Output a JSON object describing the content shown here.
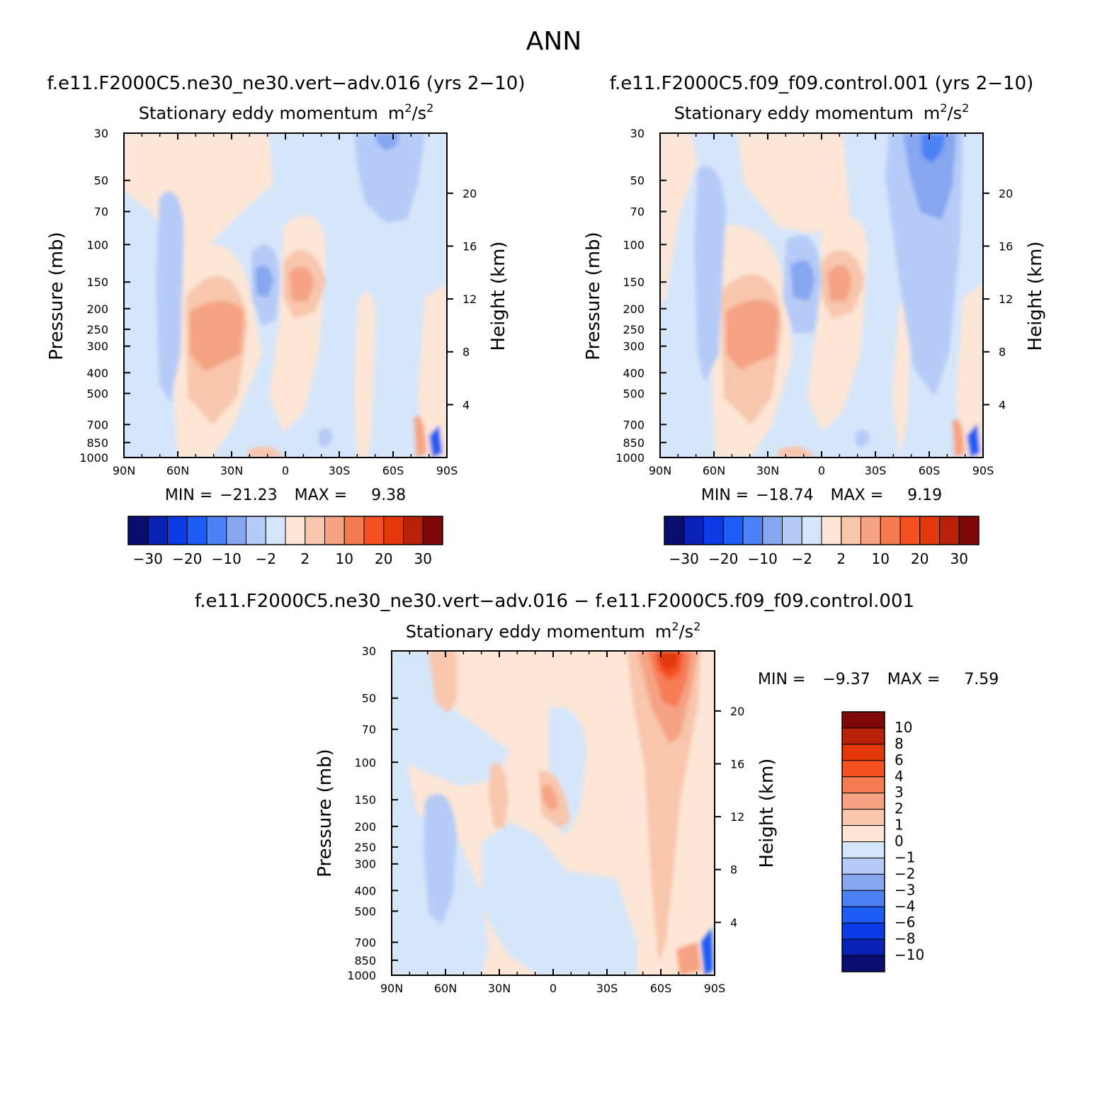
{
  "page_title": "ANN",
  "panels": [
    {
      "title": "f.e11.F2000C5.ne30_ne30.vert−adv.016 (yrs 2−10)",
      "subtitle": "Stationary eddy momentum",
      "units_base": "m",
      "units_exp1": "2",
      "units_mid": "/s",
      "units_exp2": "2",
      "min_label": "MIN =",
      "min_value": "−21.23",
      "max_label": "MAX =",
      "max_value": "9.38"
    },
    {
      "title": "f.e11.F2000C5.f09_f09.control.001 (yrs 2−10)",
      "subtitle": "Stationary eddy momentum",
      "units_base": "m",
      "units_exp1": "2",
      "units_mid": "/s",
      "units_exp2": "2",
      "min_label": "MIN =",
      "min_value": "−18.74",
      "max_label": "MAX =",
      "max_value": "9.19"
    },
    {
      "title": "f.e11.F2000C5.ne30_ne30.vert−adv.016 − f.e11.F2000C5.f09_f09.control.001",
      "subtitle": "Stationary eddy momentum",
      "units_base": "m",
      "units_exp1": "2",
      "units_mid": "/s",
      "units_exp2": "2",
      "min_label": "MIN =",
      "min_value": "−9.37",
      "max_label": "MAX =",
      "max_value": "7.59"
    }
  ],
  "axes": {
    "ylabel_left": "Pressure (mb)",
    "ylabel_right": "Height (km)",
    "x_ticks": [
      "90N",
      "60N",
      "30N",
      "0",
      "30S",
      "60S",
      "90S"
    ],
    "y_ticks": [
      "30",
      "50",
      "70",
      "100",
      "150",
      "200",
      "250",
      "300",
      "400",
      "500",
      "700",
      "850",
      "1000"
    ],
    "height_ticks": [
      "20",
      "16",
      "12",
      "8",
      "4"
    ]
  },
  "colorbars": {
    "main_labels": [
      "−30",
      "−20",
      "−10",
      "−2",
      "2",
      "10",
      "20",
      "30"
    ],
    "main_colors": [
      "#0a0d6e",
      "#0a22b4",
      "#0d3ce6",
      "#1f5cf6",
      "#4c82f5",
      "#86a6f0",
      "#b6cbf7",
      "#d6e6fa",
      "#fde6d6",
      "#f8c6ac",
      "#f6a384",
      "#f57b52",
      "#f55022",
      "#e2380a",
      "#b62108",
      "#7f0808"
    ],
    "diff_labels": [
      "10",
      "8",
      "6",
      "4",
      "3",
      "2",
      "1",
      "0",
      "−1",
      "−2",
      "−3",
      "−4",
      "−6",
      "−8",
      "−10"
    ],
    "diff_colors": [
      "#7f0808",
      "#b62108",
      "#e2380a",
      "#f55022",
      "#f57b52",
      "#f6a384",
      "#f8c6ac",
      "#fde6d6",
      "#d6e6fa",
      "#b6cbf7",
      "#86a6f0",
      "#4c82f5",
      "#1f5cf6",
      "#0d3ce6",
      "#0a22b4",
      "#0a0d6e"
    ]
  },
  "chart_data": [
    {
      "type": "heatmap",
      "title": "f.e11.F2000C5.ne30_ne30.vert−adv.016 (yrs 2−10)",
      "xlabel": "",
      "ylabel": "Pressure (mb)",
      "xlim": [
        90,
        -90
      ],
      "ylim": [
        1000,
        30
      ],
      "y_scale": "log",
      "contour_levels": [
        -30,
        -25,
        -20,
        -15,
        -10,
        -6,
        -2,
        0,
        2,
        6,
        10,
        15,
        20,
        25,
        30
      ],
      "features": [
        {
          "lat": -50,
          "p": 35,
          "value": -8
        },
        {
          "lat": -45,
          "p": 70,
          "value": -3
        },
        {
          "lat": 40,
          "p": 280,
          "value": 8
        },
        {
          "lat": 12,
          "p": 150,
          "value": -9
        },
        {
          "lat": -8,
          "p": 150,
          "value": 8
        },
        {
          "lat": 65,
          "p": 300,
          "value": -3
        },
        {
          "lat": -75,
          "p": 950,
          "value": -21.23
        }
      ],
      "min": -21.23,
      "max": 9.38
    },
    {
      "type": "heatmap",
      "title": "f.e11.F2000C5.f09_f09.control.001 (yrs 2−10)",
      "xlabel": "",
      "ylabel": "Pressure (mb)",
      "xlim": [
        90,
        -90
      ],
      "ylim": [
        1000,
        30
      ],
      "y_scale": "log",
      "contour_levels": [
        -30,
        -25,
        -20,
        -15,
        -10,
        -6,
        -2,
        0,
        2,
        6,
        10,
        15,
        20,
        25,
        30
      ],
      "features": [
        {
          "lat": -50,
          "p": 40,
          "value": -12
        },
        {
          "lat": -50,
          "p": 200,
          "value": -4
        },
        {
          "lat": 40,
          "p": 280,
          "value": 8
        },
        {
          "lat": 12,
          "p": 150,
          "value": -9
        },
        {
          "lat": -8,
          "p": 150,
          "value": 8
        },
        {
          "lat": 60,
          "p": 150,
          "value": -3
        },
        {
          "lat": -80,
          "p": 950,
          "value": -18.74
        }
      ],
      "min": -18.74,
      "max": 9.19
    },
    {
      "type": "heatmap",
      "title": "f.e11.F2000C5.ne30_ne30.vert−adv.016 − f.e11.F2000C5.f09_f09.control.001",
      "xlabel": "",
      "ylabel": "Pressure (mb)",
      "xlim": [
        90,
        -90
      ],
      "ylim": [
        1000,
        30
      ],
      "y_scale": "log",
      "contour_levels": [
        -10,
        -8,
        -6,
        -4,
        -3,
        -2,
        -1,
        0,
        1,
        2,
        3,
        4,
        6,
        8,
        10
      ],
      "features": [
        {
          "lat": -60,
          "p": 35,
          "value": 7.59
        },
        {
          "lat": -60,
          "p": 200,
          "value": 2
        },
        {
          "lat": 5,
          "p": 150,
          "value": 3
        },
        {
          "lat": 60,
          "p": 300,
          "value": -2
        },
        {
          "lat": -85,
          "p": 900,
          "value": -9.37
        }
      ],
      "min": -9.37,
      "max": 7.59
    }
  ]
}
